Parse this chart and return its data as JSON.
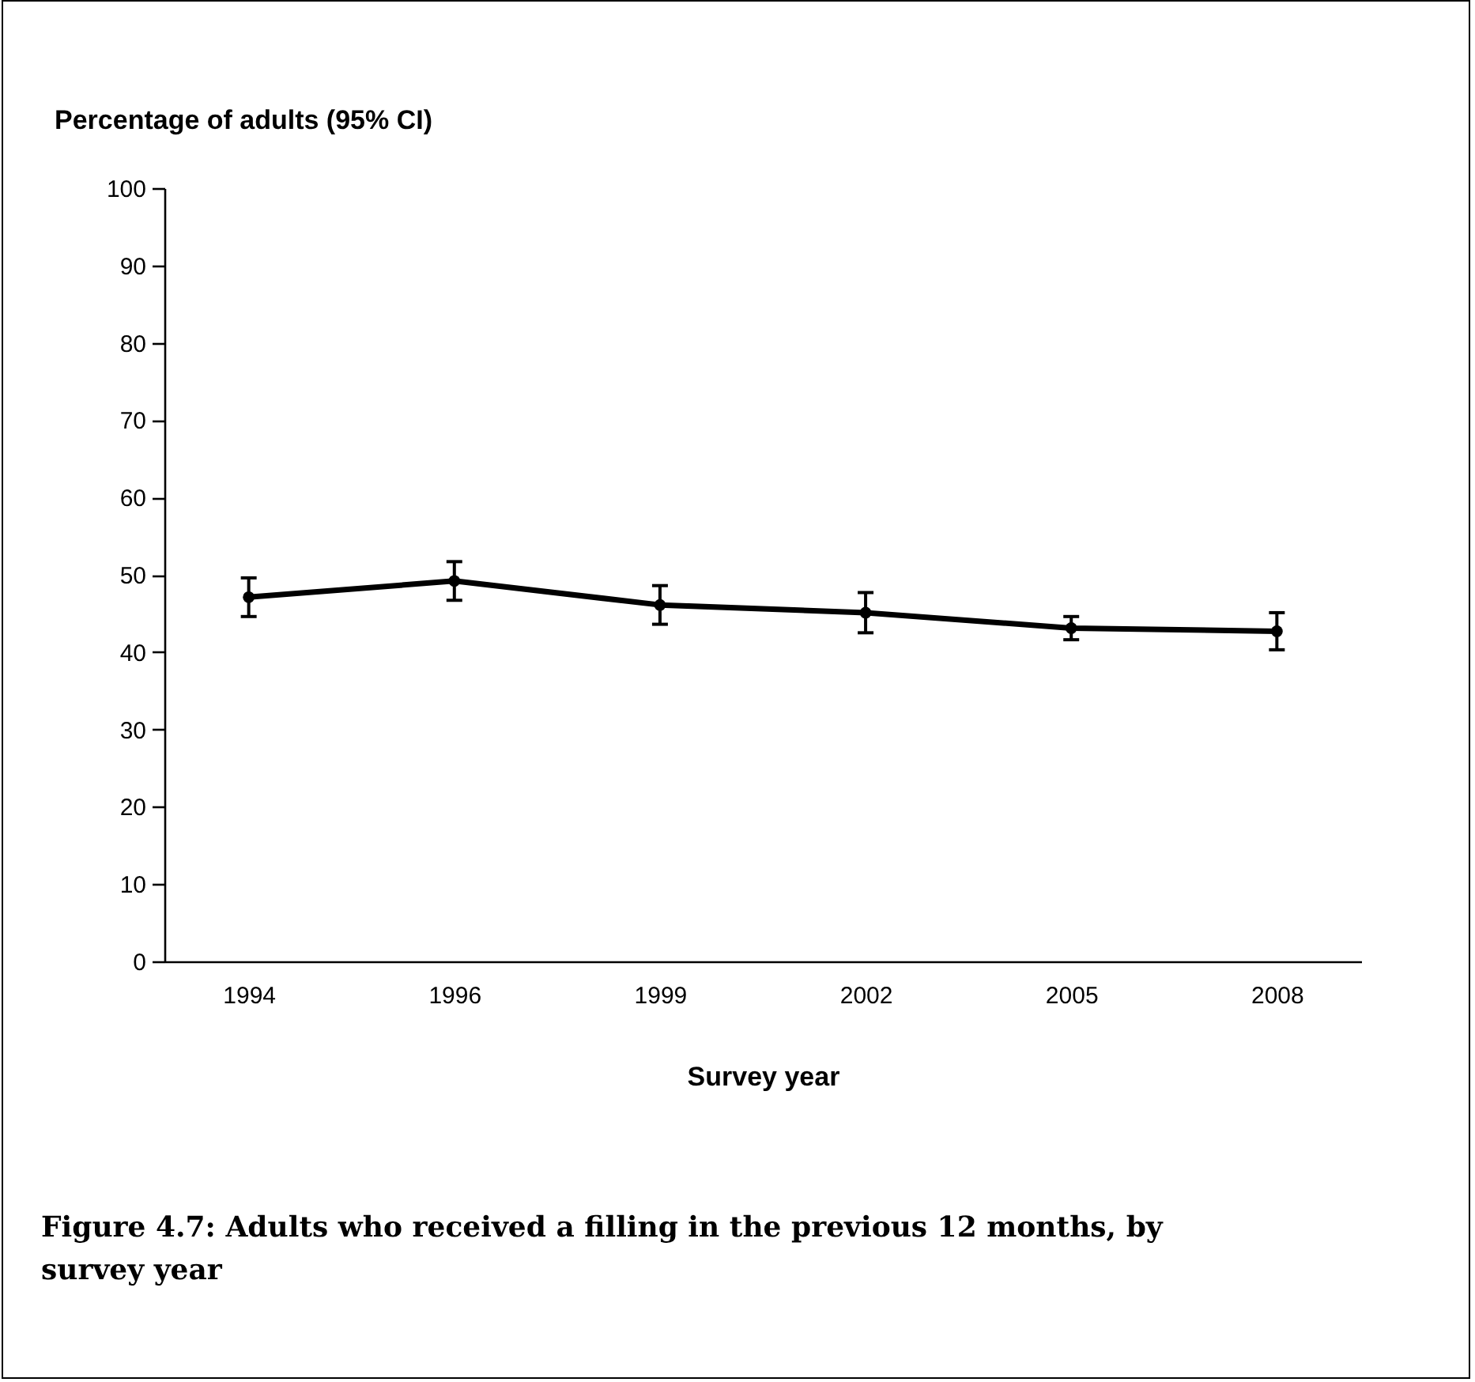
{
  "chart_data": {
    "type": "line",
    "ylabel": "Percentage of adults (95% CI)",
    "xlabel": "Survey year",
    "annotations": [
      "Figure 4.7: Adults who received a filling in the previous 12 months, by survey year"
    ],
    "categories": [
      "1994",
      "1996",
      "1999",
      "2002",
      "2005",
      "2008"
    ],
    "series": [
      {
        "color": "#000000",
        "values": [
          47.1,
          49.2,
          46.1,
          45.1,
          43.1,
          42.7
        ],
        "errors": [
          2.5,
          2.5,
          2.5,
          2.6,
          1.5,
          2.4
        ]
      }
    ],
    "ylim": [
      0,
      100
    ],
    "yticks": [
      0,
      10,
      20,
      30,
      40,
      50,
      60,
      70,
      80,
      90,
      100
    ],
    "grid": false,
    "marker": "circle",
    "line_style": "solid"
  }
}
